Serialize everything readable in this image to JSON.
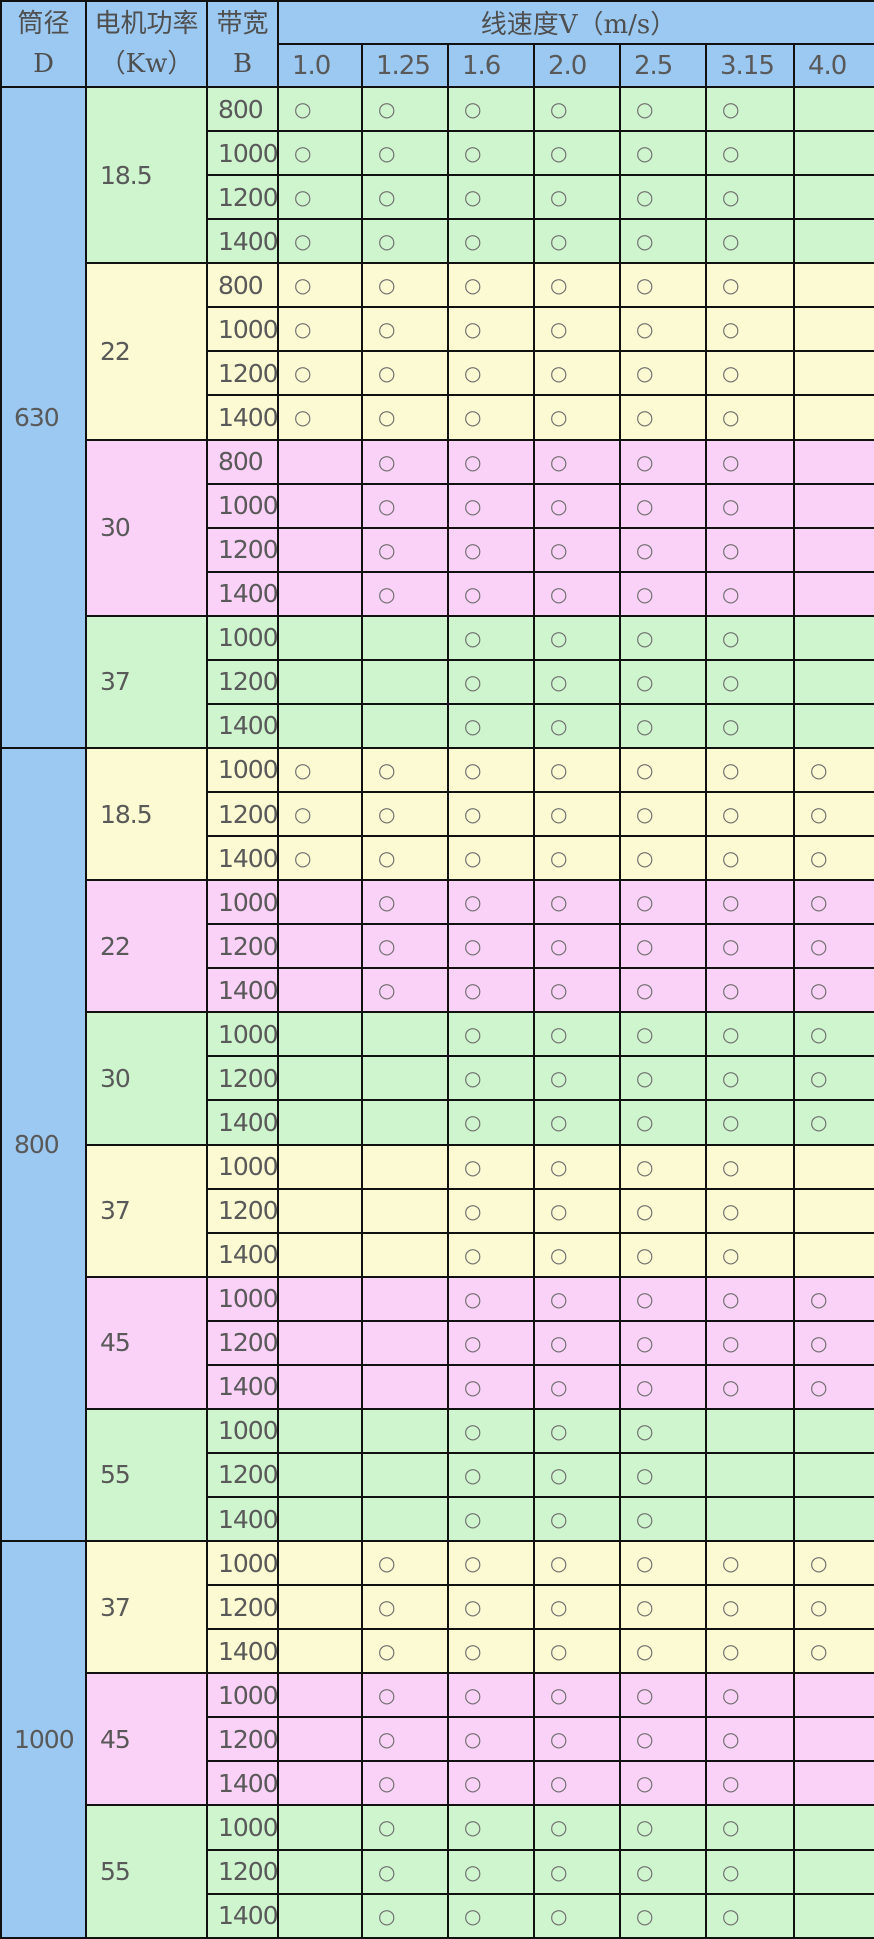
{
  "header": {
    "diameter": {
      "line1": "筒径",
      "line2": "D"
    },
    "power": {
      "line1": "电机功率",
      "line2": "（Kw）"
    },
    "band": {
      "line1": "带宽",
      "line2": "B"
    },
    "speed_title": "线速度V（m/s）",
    "speeds": [
      "1.0",
      "1.25",
      "1.6",
      "2.0",
      "2.5",
      "3.15",
      "4.0"
    ]
  },
  "mark_symbol": "○",
  "colors": {
    "header_blue": "#9BC9F2",
    "green": "#CFF5CE",
    "yellow": "#FCFAD2",
    "pink": "#FAD1F7",
    "border": "#111111",
    "text": "#595959"
  },
  "sections": [
    {
      "diameter": "630",
      "groups": [
        {
          "power": "18.5",
          "color": "green",
          "rows": [
            {
              "band": "800",
              "marks": [
                1,
                1,
                1,
                1,
                1,
                1,
                0
              ]
            },
            {
              "band": "1000",
              "marks": [
                1,
                1,
                1,
                1,
                1,
                1,
                0
              ]
            },
            {
              "band": "1200",
              "marks": [
                1,
                1,
                1,
                1,
                1,
                1,
                0
              ]
            },
            {
              "band": "1400",
              "marks": [
                1,
                1,
                1,
                1,
                1,
                1,
                0
              ]
            }
          ]
        },
        {
          "power": "22",
          "color": "yellow",
          "rows": [
            {
              "band": "800",
              "marks": [
                1,
                1,
                1,
                1,
                1,
                1,
                0
              ]
            },
            {
              "band": "1000",
              "marks": [
                1,
                1,
                1,
                1,
                1,
                1,
                0
              ]
            },
            {
              "band": "1200",
              "marks": [
                1,
                1,
                1,
                1,
                1,
                1,
                0
              ]
            },
            {
              "band": "1400",
              "marks": [
                1,
                1,
                1,
                1,
                1,
                1,
                0
              ]
            }
          ]
        },
        {
          "power": "30",
          "color": "pink",
          "rows": [
            {
              "band": "800",
              "marks": [
                0,
                1,
                1,
                1,
                1,
                1,
                0
              ]
            },
            {
              "band": "1000",
              "marks": [
                0,
                1,
                1,
                1,
                1,
                1,
                0
              ]
            },
            {
              "band": "1200",
              "marks": [
                0,
                1,
                1,
                1,
                1,
                1,
                0
              ]
            },
            {
              "band": "1400",
              "marks": [
                0,
                1,
                1,
                1,
                1,
                1,
                0
              ]
            }
          ]
        },
        {
          "power": "37",
          "color": "green",
          "rows": [
            {
              "band": "1000",
              "marks": [
                0,
                0,
                1,
                1,
                1,
                1,
                0
              ]
            },
            {
              "band": "1200",
              "marks": [
                0,
                0,
                1,
                1,
                1,
                1,
                0
              ]
            },
            {
              "band": "1400",
              "marks": [
                0,
                0,
                1,
                1,
                1,
                1,
                0
              ]
            }
          ]
        }
      ]
    },
    {
      "diameter": "800",
      "groups": [
        {
          "power": "18.5",
          "color": "yellow",
          "rows": [
            {
              "band": "1000",
              "marks": [
                1,
                1,
                1,
                1,
                1,
                1,
                1
              ]
            },
            {
              "band": "1200",
              "marks": [
                1,
                1,
                1,
                1,
                1,
                1,
                1
              ]
            },
            {
              "band": "1400",
              "marks": [
                1,
                1,
                1,
                1,
                1,
                1,
                1
              ]
            }
          ]
        },
        {
          "power": "22",
          "color": "pink",
          "rows": [
            {
              "band": "1000",
              "marks": [
                0,
                1,
                1,
                1,
                1,
                1,
                1
              ]
            },
            {
              "band": "1200",
              "marks": [
                0,
                1,
                1,
                1,
                1,
                1,
                1
              ]
            },
            {
              "band": "1400",
              "marks": [
                0,
                1,
                1,
                1,
                1,
                1,
                1
              ]
            }
          ]
        },
        {
          "power": "30",
          "color": "green",
          "rows": [
            {
              "band": "1000",
              "marks": [
                0,
                0,
                1,
                1,
                1,
                1,
                1
              ]
            },
            {
              "band": "1200",
              "marks": [
                0,
                0,
                1,
                1,
                1,
                1,
                1
              ]
            },
            {
              "band": "1400",
              "marks": [
                0,
                0,
                1,
                1,
                1,
                1,
                1
              ]
            }
          ]
        },
        {
          "power": "37",
          "color": "yellow",
          "rows": [
            {
              "band": "1000",
              "marks": [
                0,
                0,
                1,
                1,
                1,
                1,
                0
              ]
            },
            {
              "band": "1200",
              "marks": [
                0,
                0,
                1,
                1,
                1,
                1,
                0
              ]
            },
            {
              "band": "1400",
              "marks": [
                0,
                0,
                1,
                1,
                1,
                1,
                0
              ]
            }
          ]
        },
        {
          "power": "45",
          "color": "pink",
          "rows": [
            {
              "band": "1000",
              "marks": [
                0,
                0,
                1,
                1,
                1,
                1,
                1
              ]
            },
            {
              "band": "1200",
              "marks": [
                0,
                0,
                1,
                1,
                1,
                1,
                1
              ]
            },
            {
              "band": "1400",
              "marks": [
                0,
                0,
                1,
                1,
                1,
                1,
                1
              ]
            }
          ]
        },
        {
          "power": "55",
          "color": "green",
          "rows": [
            {
              "band": "1000",
              "marks": [
                0,
                0,
                1,
                1,
                1,
                0,
                0
              ]
            },
            {
              "band": "1200",
              "marks": [
                0,
                0,
                1,
                1,
                1,
                0,
                0
              ]
            },
            {
              "band": "1400",
              "marks": [
                0,
                0,
                1,
                1,
                1,
                0,
                0
              ]
            }
          ]
        }
      ]
    },
    {
      "diameter": "1000",
      "groups": [
        {
          "power": "37",
          "color": "yellow",
          "rows": [
            {
              "band": "1000",
              "marks": [
                0,
                1,
                1,
                1,
                1,
                1,
                1
              ]
            },
            {
              "band": "1200",
              "marks": [
                0,
                1,
                1,
                1,
                1,
                1,
                1
              ]
            },
            {
              "band": "1400",
              "marks": [
                0,
                1,
                1,
                1,
                1,
                1,
                1
              ]
            }
          ]
        },
        {
          "power": "45",
          "color": "pink",
          "rows": [
            {
              "band": "1000",
              "marks": [
                0,
                1,
                1,
                1,
                1,
                1,
                0
              ]
            },
            {
              "band": "1200",
              "marks": [
                0,
                1,
                1,
                1,
                1,
                1,
                0
              ]
            },
            {
              "band": "1400",
              "marks": [
                0,
                1,
                1,
                1,
                1,
                1,
                0
              ]
            }
          ]
        },
        {
          "power": "55",
          "color": "green",
          "rows": [
            {
              "band": "1000",
              "marks": [
                0,
                1,
                1,
                1,
                1,
                1,
                0
              ]
            },
            {
              "band": "1200",
              "marks": [
                0,
                1,
                1,
                1,
                1,
                1,
                0
              ]
            },
            {
              "band": "1400",
              "marks": [
                0,
                1,
                1,
                1,
                1,
                1,
                0
              ]
            }
          ]
        }
      ]
    }
  ]
}
